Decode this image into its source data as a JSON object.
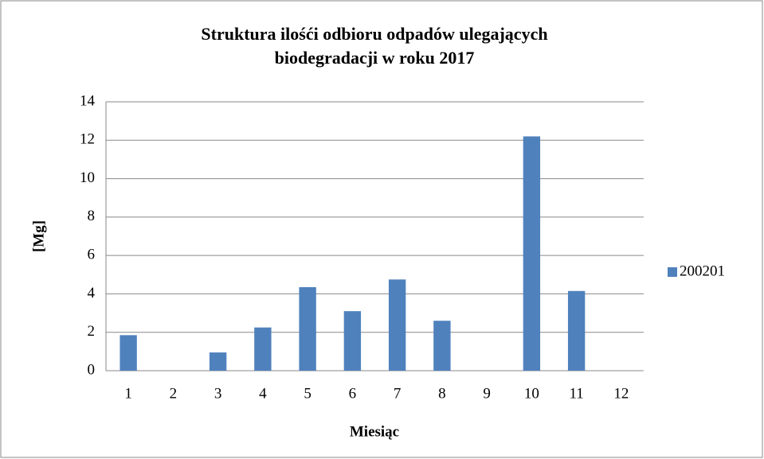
{
  "chart_data": {
    "type": "bar",
    "title": "Struktura ilośći odbioru odpadów ulegających biodegradacji w roku 2017",
    "xlabel": "Miesiąc",
    "ylabel": "[Mg]",
    "categories": [
      "1",
      "2",
      "3",
      "4",
      "5",
      "6",
      "7",
      "8",
      "9",
      "10",
      "11",
      "12"
    ],
    "series": [
      {
        "name": "200201",
        "color": "#4f81bd",
        "values": [
          1.85,
          0,
          0.95,
          2.25,
          4.35,
          3.1,
          4.75,
          2.6,
          0,
          12.2,
          4.15,
          0
        ]
      }
    ],
    "ylim": [
      0,
      14
    ],
    "yticks": [
      0,
      2,
      4,
      6,
      8,
      10,
      12,
      14
    ],
    "grid": true,
    "legend": "right"
  }
}
